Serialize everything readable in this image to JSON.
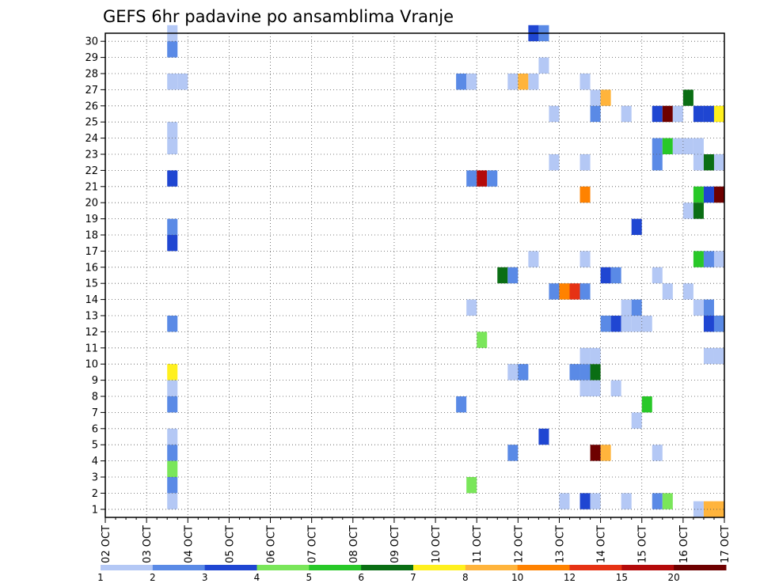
{
  "chart_data": {
    "type": "heatmap",
    "title": "GEFS 6hr padavine po ansamblima Vranje",
    "x_tick_labels": [
      "02 OCT",
      "03 OCT",
      "04 OCT",
      "05 OCT",
      "06 OCT",
      "07 OCT",
      "08 OCT",
      "09 OCT",
      "10 OCT",
      "11 OCT",
      "12 OCT",
      "13 OCT",
      "14 OCT",
      "15 OCT",
      "16 OCT",
      "17 OCT"
    ],
    "y_tick_labels": [
      "1",
      "2",
      "3",
      "4",
      "5",
      "6",
      "7",
      "8",
      "9",
      "10",
      "11",
      "12",
      "13",
      "14",
      "15",
      "16",
      "17",
      "18",
      "19",
      "20",
      "21",
      "22",
      "23",
      "24",
      "25",
      "26",
      "27",
      "28",
      "29",
      "30"
    ],
    "colorbar_labels": [
      "1",
      "2",
      "3",
      "4",
      "5",
      "6",
      "7",
      "8",
      "10",
      "12",
      "15",
      "20"
    ],
    "colorbar_colors": [
      "#b4c8f5",
      "#5a8ae6",
      "#1f46d2",
      "#7ae65a",
      "#28c828",
      "#0a6e14",
      "#fff01e",
      "#ffb43c",
      "#ff8200",
      "#e63214",
      "#b40a0a",
      "#6e0000"
    ],
    "grid": true,
    "cells": [
      {
        "x": "03 OCT 12Z",
        "y": 30,
        "v": 1
      },
      {
        "x": "03 OCT 12Z",
        "y": 29,
        "v": 2
      },
      {
        "x": "03 OCT 12Z",
        "y": 27,
        "v": 1
      },
      {
        "x": "03 OCT 18Z",
        "y": 27,
        "v": 1
      },
      {
        "x": "03 OCT 12Z",
        "y": 24,
        "v": 1
      },
      {
        "x": "03 OCT 12Z",
        "y": 23,
        "v": 1
      },
      {
        "x": "03 OCT 12Z",
        "y": 21,
        "v": 3
      },
      {
        "x": "03 OCT 12Z",
        "y": 18,
        "v": 2
      },
      {
        "x": "03 OCT 12Z",
        "y": 17,
        "v": 3
      },
      {
        "x": "03 OCT 12Z",
        "y": 12,
        "v": 2
      },
      {
        "x": "03 OCT 12Z",
        "y": 9,
        "v": 7
      },
      {
        "x": "03 OCT 12Z",
        "y": 8,
        "v": 1
      },
      {
        "x": "03 OCT 12Z",
        "y": 7,
        "v": 2
      },
      {
        "x": "03 OCT 12Z",
        "y": 5,
        "v": 1
      },
      {
        "x": "03 OCT 12Z",
        "y": 4,
        "v": 2
      },
      {
        "x": "03 OCT 12Z",
        "y": 3,
        "v": 4
      },
      {
        "x": "03 OCT 12Z",
        "y": 2,
        "v": 2
      },
      {
        "x": "03 OCT 12Z",
        "y": 1,
        "v": 1
      },
      {
        "x": "10 OCT 12Z",
        "y": 27,
        "v": 2
      },
      {
        "x": "10 OCT 18Z",
        "y": 27,
        "v": 1
      },
      {
        "x": "10 OCT 12Z",
        "y": 7,
        "v": 2
      },
      {
        "x": "10 OCT 18Z",
        "y": 21,
        "v": 2
      },
      {
        "x": "11 OCT 00Z",
        "y": 21,
        "v": 15
      },
      {
        "x": "11 OCT 06Z",
        "y": 21,
        "v": 2
      },
      {
        "x": "10 OCT 18Z",
        "y": 13,
        "v": 1
      },
      {
        "x": "10 OCT 18Z",
        "y": 2,
        "v": 4
      },
      {
        "x": "11 OCT 00Z",
        "y": 11,
        "v": 4
      },
      {
        "x": "11 OCT 12Z",
        "y": 15,
        "v": 6
      },
      {
        "x": "11 OCT 18Z",
        "y": 15,
        "v": 2
      },
      {
        "x": "11 OCT 18Z",
        "y": 27,
        "v": 1
      },
      {
        "x": "12 OCT 00Z",
        "y": 27,
        "v": 8
      },
      {
        "x": "12 OCT 06Z",
        "y": 27,
        "v": 1
      },
      {
        "x": "11 OCT 18Z",
        "y": 9,
        "v": 1
      },
      {
        "x": "12 OCT 00Z",
        "y": 9,
        "v": 2
      },
      {
        "x": "11 OCT 18Z",
        "y": 4,
        "v": 2
      },
      {
        "x": "12 OCT 06Z",
        "y": 30,
        "v": 3
      },
      {
        "x": "12 OCT 12Z",
        "y": 30,
        "v": 2
      },
      {
        "x": "12 OCT 06Z",
        "y": 16,
        "v": 1
      },
      {
        "x": "12 OCT 12Z",
        "y": 28,
        "v": 1
      },
      {
        "x": "12 OCT 12Z",
        "y": 5,
        "v": 3
      },
      {
        "x": "12 OCT 18Z",
        "y": 25,
        "v": 1
      },
      {
        "x": "12 OCT 18Z",
        "y": 22,
        "v": 1
      },
      {
        "x": "12 OCT 18Z",
        "y": 14,
        "v": 2
      },
      {
        "x": "13 OCT 00Z",
        "y": 14,
        "v": 10
      },
      {
        "x": "13 OCT 06Z",
        "y": 14,
        "v": 12
      },
      {
        "x": "13 OCT 12Z",
        "y": 14,
        "v": 2
      },
      {
        "x": "13 OCT 00Z",
        "y": 1,
        "v": 1
      },
      {
        "x": "13 OCT 06Z",
        "y": 9,
        "v": 2
      },
      {
        "x": "13 OCT 12Z",
        "y": 9,
        "v": 2
      },
      {
        "x": "13 OCT 18Z",
        "y": 9,
        "v": 6
      },
      {
        "x": "13 OCT 12Z",
        "y": 27,
        "v": 1
      },
      {
        "x": "13 OCT 12Z",
        "y": 22,
        "v": 1
      },
      {
        "x": "13 OCT 12Z",
        "y": 20,
        "v": 10
      },
      {
        "x": "13 OCT 12Z",
        "y": 16,
        "v": 1
      },
      {
        "x": "13 OCT 12Z",
        "y": 10,
        "v": 1
      },
      {
        "x": "13 OCT 18Z",
        "y": 10,
        "v": 1
      },
      {
        "x": "13 OCT 12Z",
        "y": 8,
        "v": 1
      },
      {
        "x": "13 OCT 18Z",
        "y": 8,
        "v": 1
      },
      {
        "x": "13 OCT 12Z",
        "y": 1,
        "v": 3
      },
      {
        "x": "13 OCT 18Z",
        "y": 1,
        "v": 1
      },
      {
        "x": "13 OCT 18Z",
        "y": 26,
        "v": 1
      },
      {
        "x": "14 OCT 00Z",
        "y": 26,
        "v": 8
      },
      {
        "x": "13 OCT 18Z",
        "y": 25,
        "v": 2
      },
      {
        "x": "13 OCT 18Z",
        "y": 4,
        "v": 20
      },
      {
        "x": "14 OCT 00Z",
        "y": 4,
        "v": 8
      },
      {
        "x": "14 OCT 00Z",
        "y": 15,
        "v": 3
      },
      {
        "x": "14 OCT 06Z",
        "y": 15,
        "v": 2
      },
      {
        "x": "14 OCT 00Z",
        "y": 12,
        "v": 2
      },
      {
        "x": "14 OCT 06Z",
        "y": 12,
        "v": 3
      },
      {
        "x": "14 OCT 12Z",
        "y": 12,
        "v": 1
      },
      {
        "x": "14 OCT 18Z",
        "y": 12,
        "v": 1
      },
      {
        "x": "15 OCT 00Z",
        "y": 12,
        "v": 1
      },
      {
        "x": "14 OCT 06Z",
        "y": 8,
        "v": 1
      },
      {
        "x": "14 OCT 12Z",
        "y": 25,
        "v": 1
      },
      {
        "x": "14 OCT 12Z",
        "y": 13,
        "v": 1
      },
      {
        "x": "14 OCT 18Z",
        "y": 13,
        "v": 2
      },
      {
        "x": "14 OCT 12Z",
        "y": 1,
        "v": 1
      },
      {
        "x": "14 OCT 18Z",
        "y": 18,
        "v": 3
      },
      {
        "x": "14 OCT 18Z",
        "y": 6,
        "v": 1
      },
      {
        "x": "15 OCT 00Z",
        "y": 7,
        "v": 5
      },
      {
        "x": "15 OCT 06Z",
        "y": 25,
        "v": 3
      },
      {
        "x": "15 OCT 12Z",
        "y": 25,
        "v": 20
      },
      {
        "x": "15 OCT 18Z",
        "y": 25,
        "v": 1
      },
      {
        "x": "15 OCT 06Z",
        "y": 23,
        "v": 2
      },
      {
        "x": "15 OCT 12Z",
        "y": 23,
        "v": 5
      },
      {
        "x": "15 OCT 18Z",
        "y": 23,
        "v": 1
      },
      {
        "x": "16 OCT 00Z",
        "y": 23,
        "v": 1
      },
      {
        "x": "16 OCT 06Z",
        "y": 23,
        "v": 1
      },
      {
        "x": "15 OCT 06Z",
        "y": 22,
        "v": 2
      },
      {
        "x": "15 OCT 06Z",
        "y": 15,
        "v": 1
      },
      {
        "x": "15 OCT 06Z",
        "y": 4,
        "v": 1
      },
      {
        "x": "15 OCT 06Z",
        "y": 1,
        "v": 2
      },
      {
        "x": "15 OCT 12Z",
        "y": 1,
        "v": 4
      },
      {
        "x": "15 OCT 12Z",
        "y": 14,
        "v": 1
      },
      {
        "x": "16 OCT 00Z",
        "y": 26,
        "v": 6
      },
      {
        "x": "16 OCT 00Z",
        "y": 19,
        "v": 1
      },
      {
        "x": "16 OCT 00Z",
        "y": 14,
        "v": 1
      },
      {
        "x": "16 OCT 06Z",
        "y": 25,
        "v": 3
      },
      {
        "x": "16 OCT 12Z",
        "y": 25,
        "v": 3
      },
      {
        "x": "16 OCT 18Z",
        "y": 25,
        "v": 7
      },
      {
        "x": "16 OCT 06Z",
        "y": 22,
        "v": 1
      },
      {
        "x": "16 OCT 12Z",
        "y": 22,
        "v": 6
      },
      {
        "x": "16 OCT 18Z",
        "y": 22,
        "v": 1
      },
      {
        "x": "16 OCT 06Z",
        "y": 20,
        "v": 5
      },
      {
        "x": "16 OCT 12Z",
        "y": 20,
        "v": 3
      },
      {
        "x": "16 OCT 18Z",
        "y": 20,
        "v": 20
      },
      {
        "x": "16 OCT 06Z",
        "y": 19,
        "v": 6
      },
      {
        "x": "16 OCT 06Z",
        "y": 16,
        "v": 5
      },
      {
        "x": "16 OCT 12Z",
        "y": 16,
        "v": 2
      },
      {
        "x": "16 OCT 18Z",
        "y": 16,
        "v": 1
      },
      {
        "x": "16 OCT 06Z",
        "y": 13,
        "v": 1
      },
      {
        "x": "16 OCT 12Z",
        "y": 13,
        "v": 2
      },
      {
        "x": "16 OCT 12Z",
        "y": 12,
        "v": 3
      },
      {
        "x": "16 OCT 18Z",
        "y": 12,
        "v": 2
      },
      {
        "x": "16 OCT 12Z",
        "y": 10,
        "v": 1
      },
      {
        "x": "16 OCT 18Z",
        "y": 10,
        "v": 1
      },
      {
        "x": "16 OCT 06Z",
        "y": 0.5,
        "v": 1
      },
      {
        "x": "16 OCT 12Z",
        "y": 0.5,
        "v": 8
      },
      {
        "x": "16 OCT 18Z",
        "y": 0.5,
        "v": 8
      }
    ]
  }
}
